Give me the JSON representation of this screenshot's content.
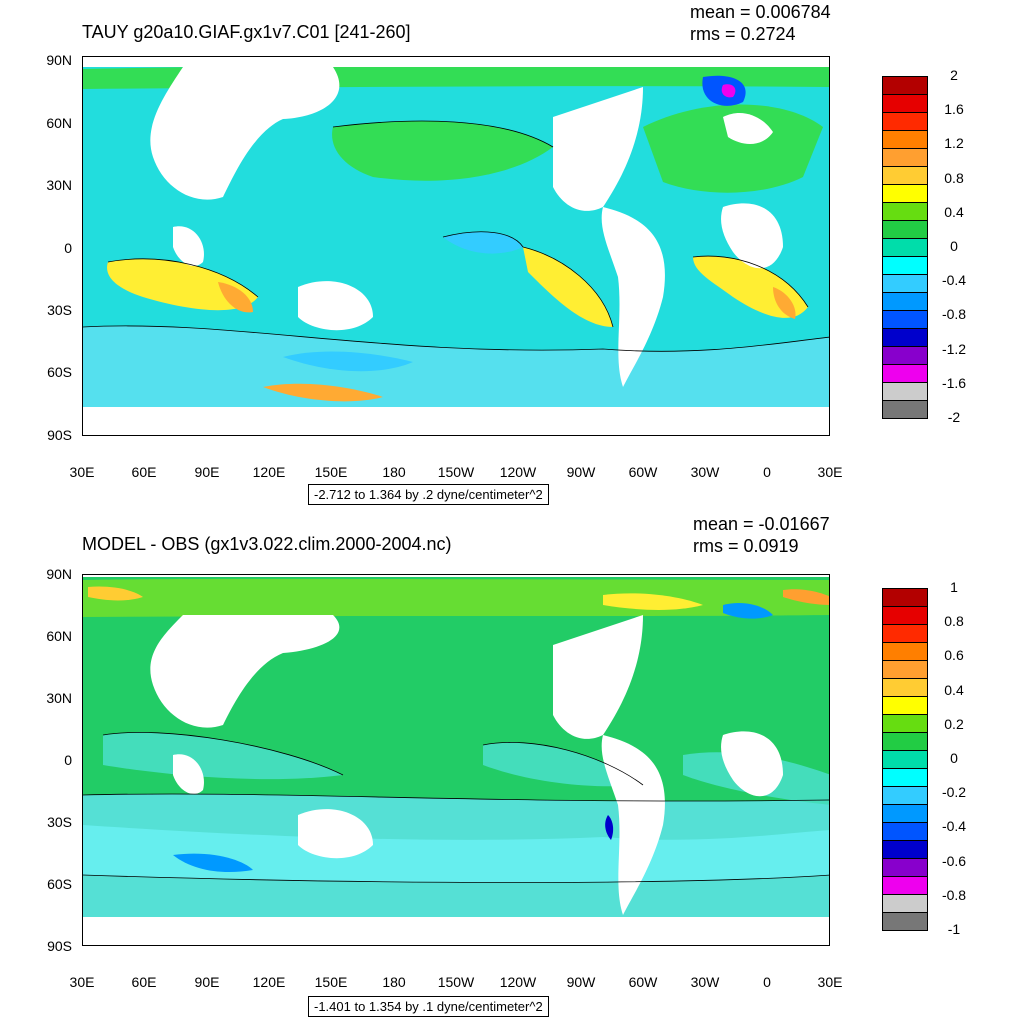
{
  "panels": [
    {
      "title": "TAUY g20a10.GIAF.gx1v7.C01 [241-260]",
      "mean": "mean = 0.006784",
      "rms": "rms = 0.2724",
      "range_label": "-2.712 to 1.364 by .2 dyne/centimeter^2",
      "colorbar_labels": [
        "2",
        "1.6",
        "1.2",
        "0.8",
        "0.4",
        "0",
        "-0.4",
        "-0.8",
        "-1.2",
        "-1.6",
        "-2"
      ],
      "colorbar_colors": [
        "#b30000",
        "#e60000",
        "#ff2a00",
        "#ff7f00",
        "#ff9f30",
        "#ffcc33",
        "#ffff00",
        "#66dd11",
        "#22cc44",
        "#00ddaa",
        "#00ffff",
        "#33ccff",
        "#0099ff",
        "#0055ff",
        "#0000cc",
        "#8800cc",
        "#ee00ee",
        "#cccccc",
        "#777777"
      ]
    },
    {
      "title": "MODEL - OBS (gx1v3.022.clim.2000-2004.nc)",
      "mean": "mean = -0.01667",
      "rms": "rms = 0.0919",
      "range_label": "-1.401 to 1.354 by .1 dyne/centimeter^2",
      "colorbar_labels": [
        "1",
        "0.8",
        "0.6",
        "0.4",
        "0.2",
        "0",
        "-0.2",
        "-0.4",
        "-0.6",
        "-0.8",
        "-1"
      ],
      "colorbar_colors": [
        "#b30000",
        "#e60000",
        "#ff2a00",
        "#ff7f00",
        "#ff9f30",
        "#ffcc33",
        "#ffff00",
        "#66dd11",
        "#22cc44",
        "#00ddaa",
        "#00ffff",
        "#33ccff",
        "#0099ff",
        "#0055ff",
        "#0000cc",
        "#8800cc",
        "#ee00ee",
        "#cccccc",
        "#777777"
      ]
    }
  ],
  "lat_labels": [
    "90N",
    "60N",
    "30N",
    "0",
    "30S",
    "60S",
    "90S"
  ],
  "lon_labels": [
    "30E",
    "60E",
    "90E",
    "120E",
    "150E",
    "180",
    "150W",
    "120W",
    "90W",
    "60W",
    "30W",
    "0",
    "30E"
  ],
  "colors": {
    "ocean_teal": "#22dddd",
    "ocean_green": "#33dd55",
    "ocean_lightblue": "#66ccff",
    "yellow": "#ffee33",
    "orange": "#ffaa33",
    "land": "#ffffff"
  }
}
